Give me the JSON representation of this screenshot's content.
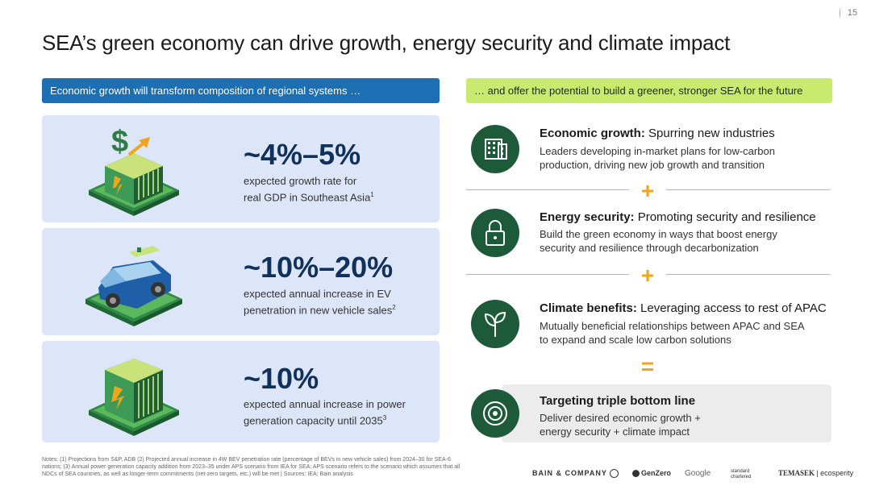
{
  "page_number": "15",
  "title": "SEA’s green economy can drive growth, energy security and climate impact",
  "banner_left": "Economic growth will transform composition of regional systems …",
  "banner_right": "… and offer the potential to build a greener, stronger SEA for the future",
  "stats": [
    {
      "value": "~4%–5%",
      "desc_line1": "expected growth rate for",
      "desc_line2": "real GDP in Southeast Asia",
      "sup": "1",
      "icon": "money-growth-illustration"
    },
    {
      "value": "~10%–20%",
      "desc_line1": "expected annual increase in EV",
      "desc_line2": "penetration in new vehicle sales",
      "sup": "2",
      "icon": "electric-car-illustration"
    },
    {
      "value": "~10%",
      "desc_line1": "expected annual increase in power",
      "desc_line2": "generation capacity until 2035",
      "sup": "3",
      "icon": "battery-illustration"
    }
  ],
  "pillars": [
    {
      "title_bold": "Economic growth:",
      "title_rest": " Spurring new industries",
      "desc": "Leaders developing in-market plans for low-carbon production, driving new job growth and transition",
      "icon": "buildings-icon"
    },
    {
      "title_bold": "Energy security:",
      "title_rest": " Promoting security and resilience",
      "desc": "Build the green economy in ways that boost energy security and resilience through decarbonization",
      "icon": "lock-icon"
    },
    {
      "title_bold": "Climate benefits:",
      "title_rest": " Leveraging access to rest of APAC",
      "desc": "Mutually beneficial relationships between APAC and SEA to expand and scale low carbon solutions",
      "icon": "sprout-icon"
    }
  ],
  "target": {
    "title": "Targeting triple bottom line",
    "desc": "Deliver desired economic growth + energy security + climate impact",
    "icon": "target-icon"
  },
  "operators": {
    "plus": "+",
    "equals": "="
  },
  "footnote": "Notes: (1) Projections from S&P, ADB (2) Projected annual increase in 4W BEV penetration rate (percentage of BEVs in new vehicle sales) from 2024–30 for SEA-6 nations; (3) Annual power generation capacity addition from 2023–35 under APS scenario from IEA for SEA; APS scenario refers to the scenario which assumes that all NDCs of SEA countries, as well as longer-term commitments (net-zero targets, etc.) will be met | Sources: IEA; Bain analysis",
  "logos": {
    "bain": "BAIN & COMPANY",
    "genzero": "GenZero",
    "google": "Google",
    "standard_chartered": "standard chartered",
    "temasek": "TEMASEK",
    "ecosperity": "ecosperity"
  },
  "colors": {
    "blue_banner": "#1c6fb3",
    "green_banner": "#c8ea6e",
    "card_bg": "#dde6f8",
    "icon_green": "#1d5a3a",
    "accent_orange": "#f2a51a",
    "value_navy": "#10315c"
  }
}
